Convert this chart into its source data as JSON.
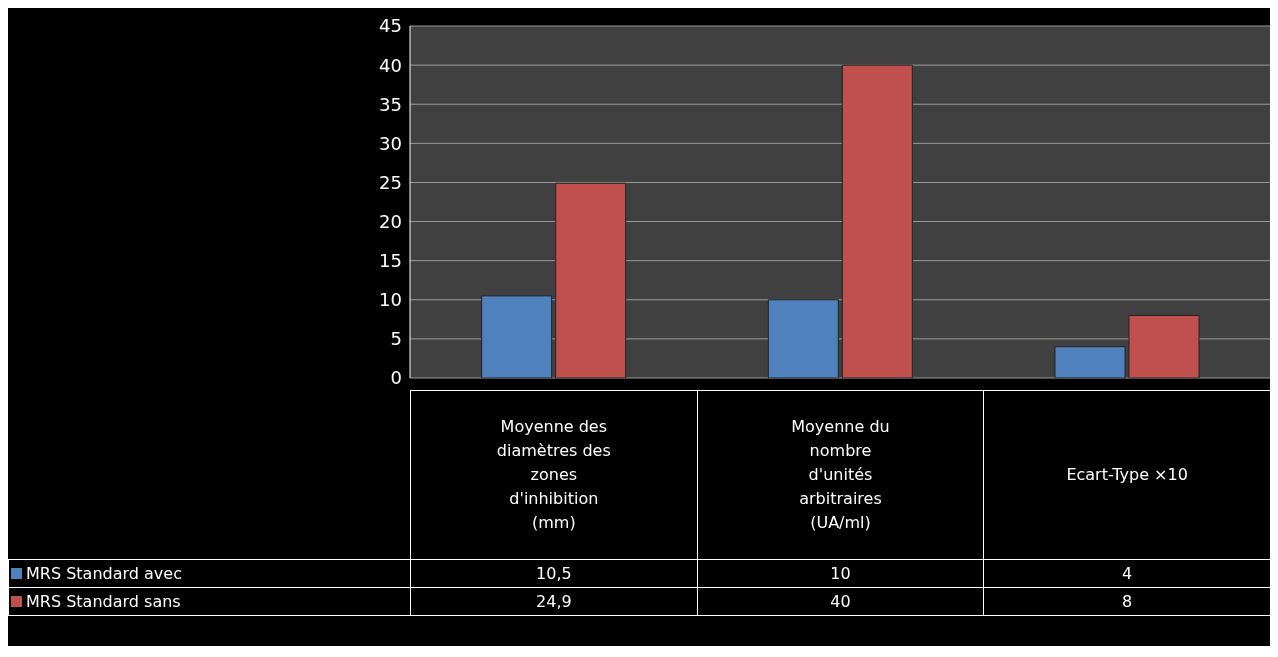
{
  "chart_data": {
    "type": "bar",
    "categories": [
      "Moyenne des diamètres des zones d'inhibition (mm)",
      "Moyenne du nombre d'unités arbitraires (UA/ml)",
      "Ecart-Type ×10"
    ],
    "series": [
      {
        "name": "MRS Standard avec",
        "color": "#4f81bd",
        "values": [
          10.5,
          10,
          4
        ],
        "value_labels": [
          "10,5",
          "10",
          "4"
        ]
      },
      {
        "name": "MRS Standard sans",
        "color": "#c0504d",
        "values": [
          24.9,
          40,
          8
        ],
        "value_labels": [
          "24,9",
          "40",
          "8"
        ]
      }
    ],
    "ylim": [
      0,
      45
    ],
    "yticks": [
      0,
      5,
      10,
      15,
      20,
      25,
      30,
      35,
      40,
      45
    ],
    "grid": "y",
    "legend": "bottom left"
  }
}
